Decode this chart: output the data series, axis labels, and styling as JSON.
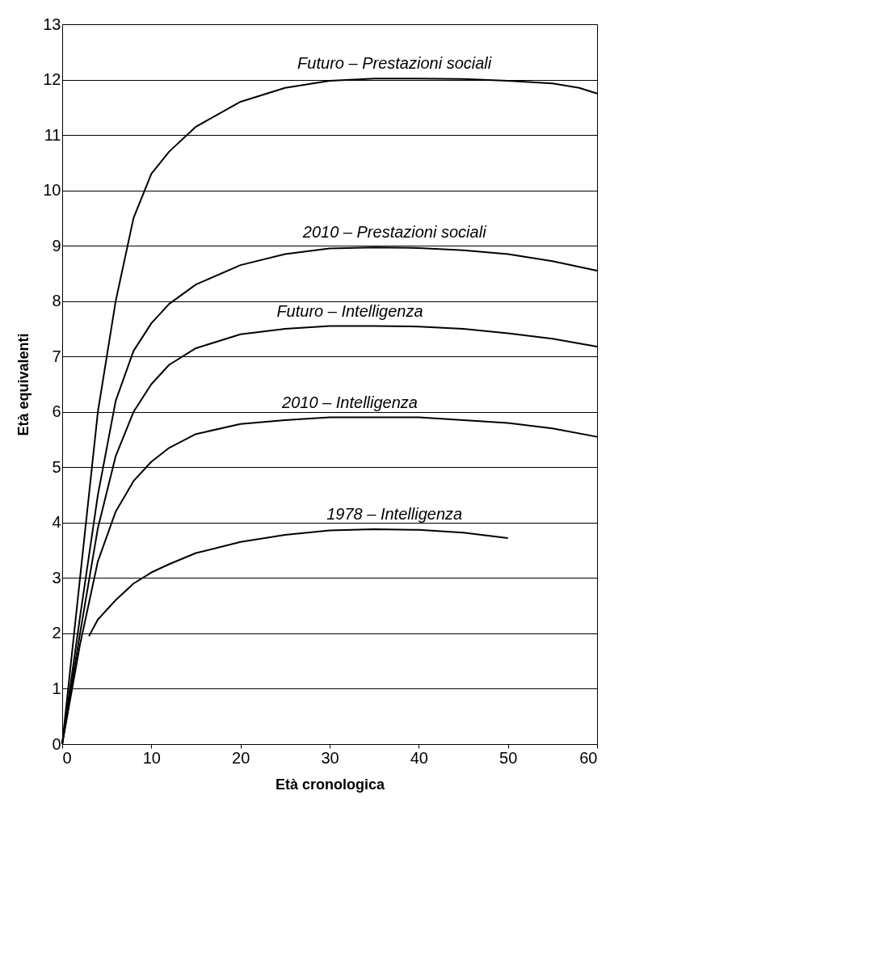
{
  "chart_data": {
    "type": "line",
    "xlabel": "Età cronologica",
    "ylabel": "Età equivalenti",
    "xlim": [
      0,
      60
    ],
    "ylim": [
      0,
      13
    ],
    "xticks": [
      0,
      10,
      20,
      30,
      40,
      50,
      60
    ],
    "yticks": [
      0,
      1,
      2,
      3,
      4,
      5,
      6,
      7,
      8,
      9,
      10,
      11,
      12,
      13
    ],
    "grid": "y",
    "marker": "none",
    "line_style": "solid",
    "series": [
      {
        "name": "Futuro – Prestazioni sociali",
        "color": "#000000",
        "x": [
          0,
          2,
          4,
          6,
          8,
          10,
          12,
          15,
          20,
          25,
          30,
          35,
          40,
          45,
          50,
          55,
          58,
          60
        ],
        "values": [
          0,
          3,
          6,
          8,
          9.5,
          10.3,
          10.7,
          11.15,
          11.6,
          11.85,
          11.98,
          12.02,
          12.02,
          12.01,
          11.98,
          11.93,
          11.85,
          11.75
        ]
      },
      {
        "name": "2010 – Prestazioni sociali",
        "color": "#000000",
        "x": [
          0,
          2,
          4,
          6,
          8,
          10,
          12,
          15,
          20,
          25,
          30,
          35,
          40,
          45,
          50,
          55,
          60
        ],
        "values": [
          0,
          2.3,
          4.5,
          6.2,
          7.1,
          7.6,
          7.95,
          8.3,
          8.65,
          8.85,
          8.95,
          8.97,
          8.96,
          8.92,
          8.85,
          8.72,
          8.55
        ]
      },
      {
        "name": "Futuro – Intelligenza",
        "color": "#000000",
        "x": [
          0,
          2,
          4,
          6,
          8,
          10,
          12,
          15,
          20,
          25,
          30,
          35,
          40,
          45,
          50,
          55,
          60
        ],
        "values": [
          0,
          2.0,
          3.9,
          5.2,
          6.0,
          6.5,
          6.85,
          7.15,
          7.4,
          7.5,
          7.55,
          7.55,
          7.54,
          7.5,
          7.42,
          7.32,
          7.18
        ]
      },
      {
        "name": "2010 – Intelligenza",
        "color": "#000000",
        "x": [
          0,
          2,
          4,
          6,
          8,
          10,
          12,
          15,
          20,
          25,
          30,
          35,
          40,
          45,
          50,
          55,
          60
        ],
        "values": [
          0,
          1.8,
          3.3,
          4.2,
          4.75,
          5.1,
          5.35,
          5.6,
          5.78,
          5.85,
          5.9,
          5.9,
          5.9,
          5.85,
          5.8,
          5.7,
          5.55
        ]
      },
      {
        "name": "1978 – Intelligenza",
        "color": "#000000",
        "x": [
          3,
          4,
          6,
          8,
          10,
          12,
          15,
          20,
          25,
          30,
          35,
          40,
          45,
          50
        ],
        "values": [
          1.95,
          2.25,
          2.6,
          2.9,
          3.1,
          3.25,
          3.45,
          3.65,
          3.78,
          3.86,
          3.88,
          3.87,
          3.82,
          3.72
        ]
      }
    ]
  }
}
